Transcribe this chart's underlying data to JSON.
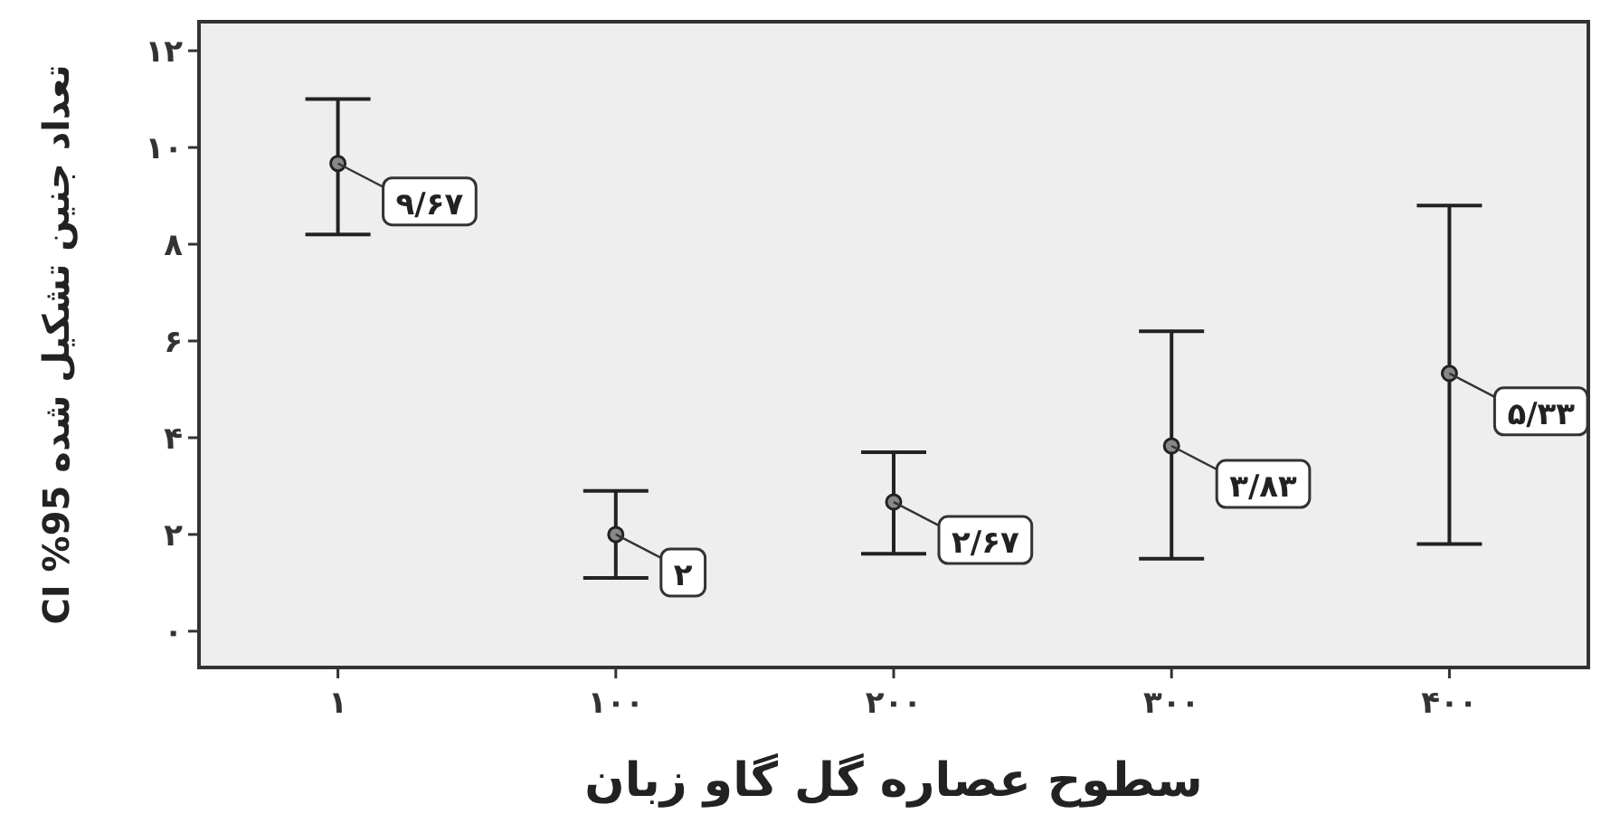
{
  "chart_data": {
    "type": "scatter",
    "xlabel": "سطوح عصاره گل گاو زبان",
    "ylabel": "تعداد جنین تشکیل شده 95% CI",
    "categories": [
      "۱",
      "۱۰۰",
      "۲۰۰",
      "۳۰۰",
      "۴۰۰"
    ],
    "values": [
      9.67,
      2,
      2.67,
      3.83,
      5.33
    ],
    "value_labels": [
      "۹/۶۷",
      "۲",
      "۲/۶۷",
      "۳/۸۳",
      "۵/۳۳"
    ],
    "errors": [
      [
        8.2,
        11.0
      ],
      [
        1.1,
        2.9
      ],
      [
        1.6,
        3.7
      ],
      [
        1.5,
        6.2
      ],
      [
        1.8,
        8.8
      ]
    ],
    "color": "#222222",
    "marker": "circle",
    "ylim": [
      -0.75,
      12.6
    ],
    "yticks": [
      {
        "value": 0,
        "label": "۰"
      },
      {
        "value": 2,
        "label": "۲"
      },
      {
        "value": 4,
        "label": "۴"
      },
      {
        "value": 6,
        "label": "۶"
      },
      {
        "value": 8,
        "label": "۸"
      },
      {
        "value": 10,
        "label": "۱۰"
      },
      {
        "value": 12,
        "label": "۱۲"
      }
    ],
    "grid": false
  }
}
